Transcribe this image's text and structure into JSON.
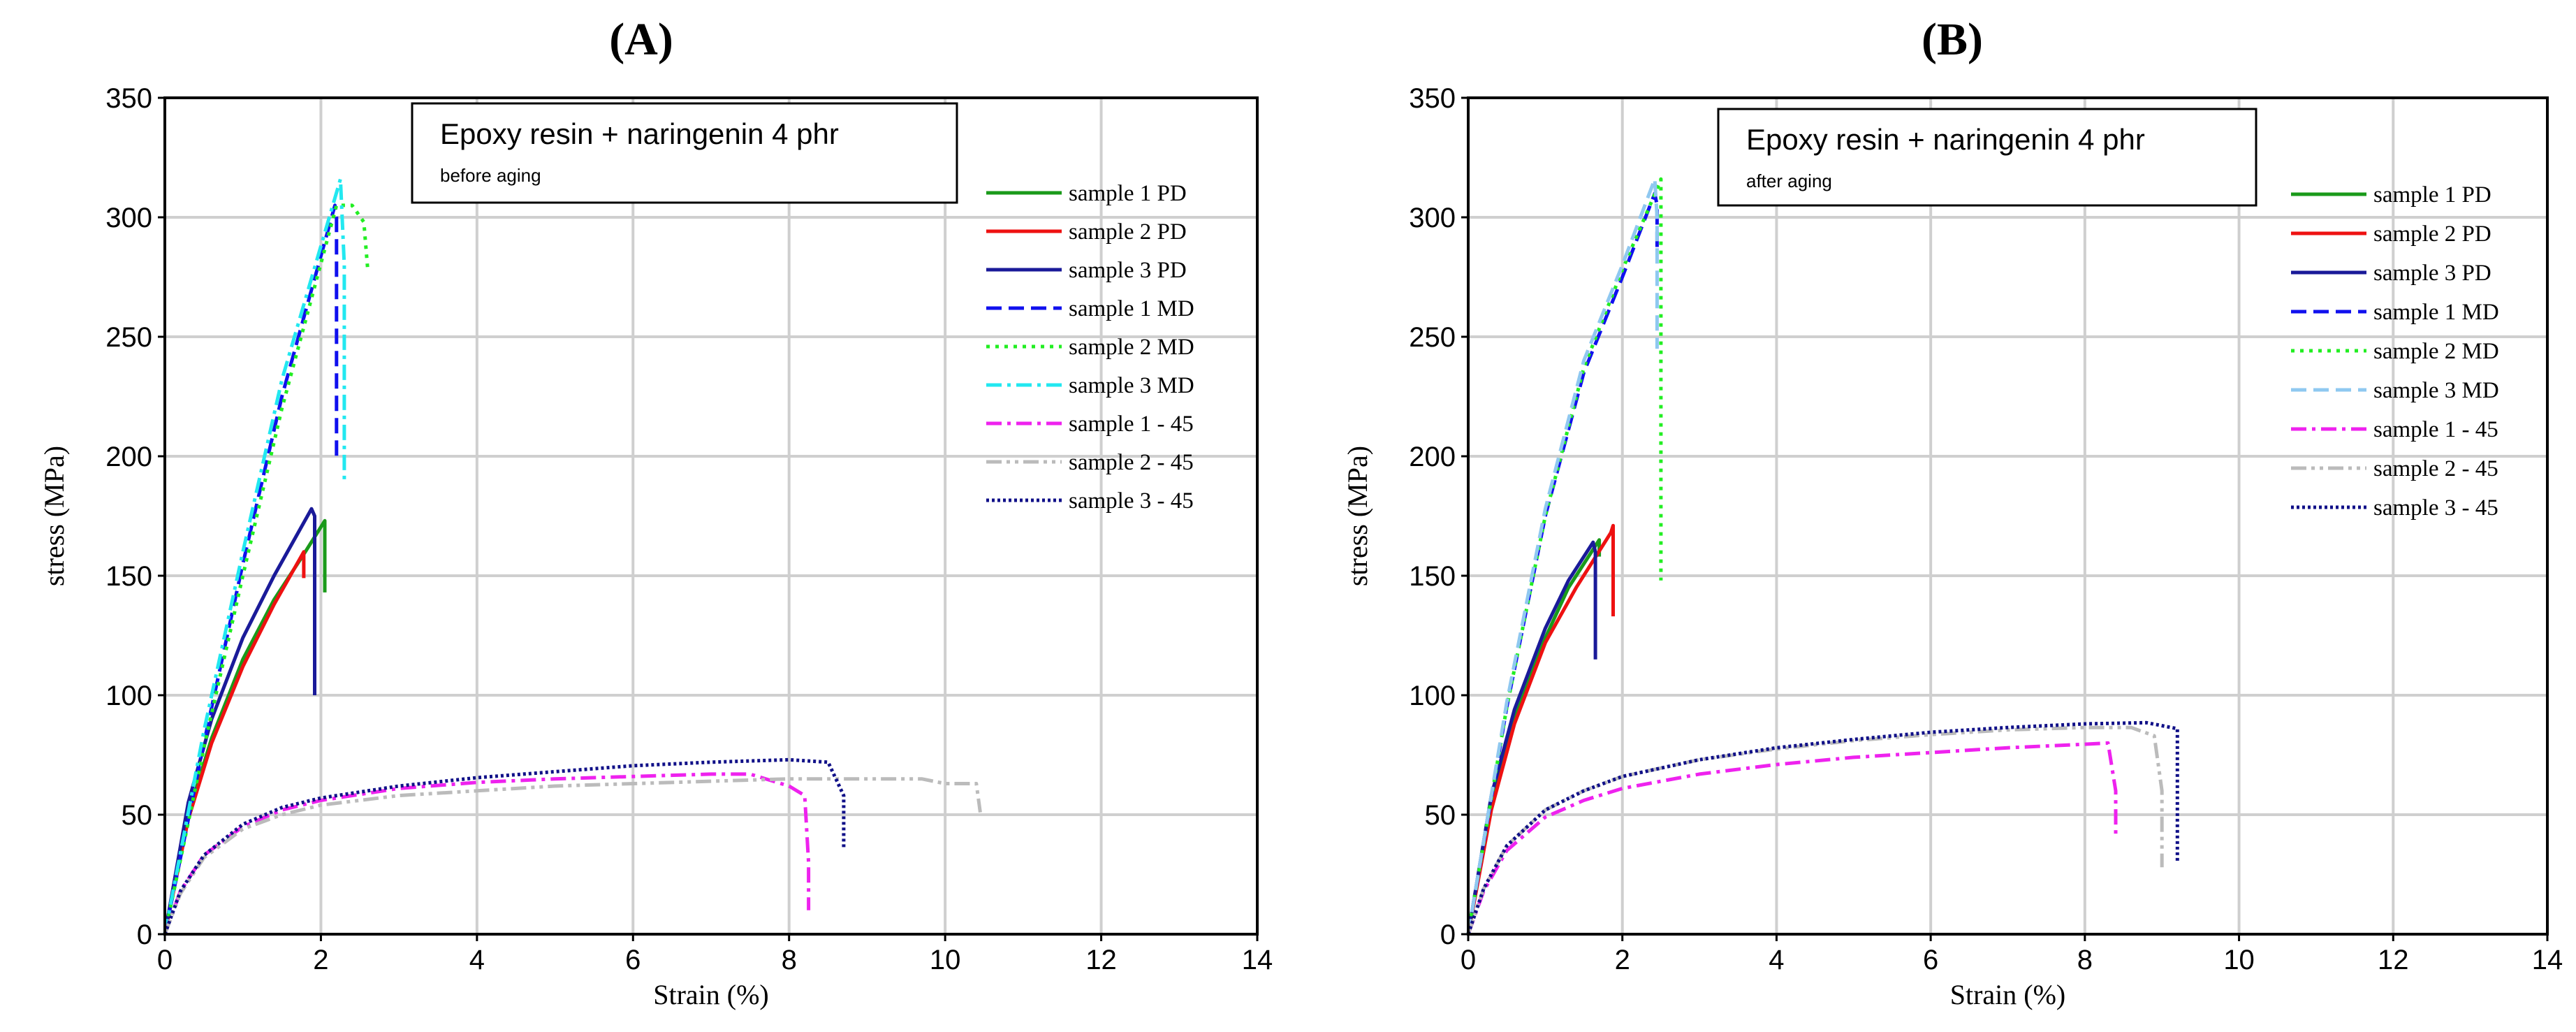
{
  "chart_data": [
    {
      "type": "line",
      "panel_label": "(A)",
      "title": "Epoxy resin + naringenin 4 phr",
      "subtitle": "before aging",
      "xlabel": "Strain (%)",
      "ylabel": "stress (MPa)",
      "xlim": [
        0,
        14
      ],
      "ylim": [
        0,
        350
      ],
      "xticks": [
        0,
        2,
        4,
        6,
        8,
        10,
        12,
        14
      ],
      "yticks": [
        0,
        50,
        100,
        150,
        200,
        250,
        300,
        350
      ],
      "grid": true,
      "legend_position": "right",
      "series": [
        {
          "name": "sample 1 PD",
          "color": "#1a9a1a",
          "dash": "solid",
          "x": [
            0,
            0.3,
            0.6,
            1.0,
            1.4,
            1.8,
            2.05,
            2.05
          ],
          "y": [
            0,
            50,
            82,
            115,
            140,
            160,
            173,
            143
          ]
        },
        {
          "name": "sample 2 PD",
          "color": "#ee1111",
          "dash": "solid",
          "x": [
            0,
            0.3,
            0.6,
            1.0,
            1.4,
            1.78,
            1.78
          ],
          "y": [
            0,
            48,
            80,
            112,
            138,
            160,
            149
          ]
        },
        {
          "name": "sample 3 PD",
          "color": "#1a1a99",
          "dash": "solid",
          "x": [
            0,
            0.3,
            0.6,
            1.0,
            1.4,
            1.88,
            1.92,
            1.92
          ],
          "y": [
            0,
            55,
            90,
            124,
            150,
            178,
            175,
            100
          ]
        },
        {
          "name": "sample 1 MD",
          "color": "#1010ee",
          "dash": "dashed",
          "x": [
            0,
            0.5,
            1.0,
            1.5,
            2.18,
            2.2,
            2.2
          ],
          "y": [
            0,
            80,
            155,
            225,
            305,
            300,
            200
          ]
        },
        {
          "name": "sample 2 MD",
          "color": "#22ee22",
          "dash": "dotted",
          "x": [
            0,
            0.5,
            1.0,
            1.5,
            2.2,
            2.4,
            2.55,
            2.6
          ],
          "y": [
            0,
            78,
            150,
            220,
            305,
            305,
            298,
            278
          ]
        },
        {
          "name": "sample 3 MD",
          "color": "#22e8f0",
          "dash": "dashdot",
          "x": [
            0,
            0.5,
            1.0,
            1.5,
            2.25,
            2.3,
            2.3
          ],
          "y": [
            0,
            85,
            160,
            232,
            316,
            280,
            190
          ]
        },
        {
          "name": "sample 1 - 45",
          "color": "#ee22ee",
          "dash": "dashdot",
          "x": [
            0,
            0.2,
            0.5,
            1,
            1.5,
            2,
            3,
            4,
            5,
            6,
            7,
            7.5,
            8.0,
            8.2,
            8.25,
            8.25
          ],
          "y": [
            0,
            18,
            33,
            45,
            52,
            56,
            61,
            63.5,
            65,
            66,
            67,
            67,
            62,
            58,
            30,
            10
          ]
        },
        {
          "name": "sample 2 - 45",
          "color": "#bbbbbb",
          "dash": "dashdotdot",
          "x": [
            0,
            0.2,
            0.5,
            1,
            1.5,
            2,
            3,
            4,
            5,
            6,
            7,
            8,
            9,
            9.7,
            10.0,
            10.4,
            10.45
          ],
          "y": [
            0,
            17,
            32,
            44,
            50,
            54,
            58,
            60,
            62,
            63,
            64,
            65,
            65,
            65,
            63,
            63,
            51
          ]
        },
        {
          "name": "sample 3 - 45",
          "color": "#101088",
          "dash": "densedot",
          "x": [
            0,
            0.2,
            0.5,
            1,
            1.5,
            2,
            3,
            4,
            5,
            6,
            7,
            8,
            8.5,
            8.7,
            8.7
          ],
          "y": [
            0,
            18,
            33,
            46,
            53,
            57,
            62,
            65.5,
            68,
            70.5,
            72,
            73,
            72,
            58,
            36
          ]
        }
      ]
    },
    {
      "type": "line",
      "panel_label": "(B)",
      "title": "Epoxy resin + naringenin 4 phr",
      "subtitle": "after aging",
      "xlabel": "Strain (%)",
      "ylabel": "stress (MPa)",
      "xlim": [
        0,
        14
      ],
      "ylim": [
        0,
        350
      ],
      "xticks": [
        0,
        2,
        4,
        6,
        8,
        10,
        12,
        14
      ],
      "yticks": [
        0,
        50,
        100,
        150,
        200,
        250,
        300,
        350
      ],
      "grid": true,
      "legend_position": "right",
      "series": [
        {
          "name": "sample 1 PD",
          "color": "#1a9a1a",
          "dash": "solid",
          "x": [
            0,
            0.3,
            0.6,
            1.0,
            1.3,
            1.7,
            1.7
          ],
          "y": [
            0,
            55,
            90,
            124,
            145,
            165,
            158
          ]
        },
        {
          "name": "sample 2 PD",
          "color": "#ee1111",
          "dash": "solid",
          "x": [
            0,
            0.3,
            0.6,
            1.0,
            1.4,
            1.85,
            1.88,
            1.88
          ],
          "y": [
            0,
            52,
            88,
            122,
            145,
            168,
            171,
            133
          ]
        },
        {
          "name": "sample 3 PD",
          "color": "#1a1a99",
          "dash": "solid",
          "x": [
            0,
            0.3,
            0.6,
            1.0,
            1.3,
            1.62,
            1.65,
            1.65
          ],
          "y": [
            0,
            58,
            94,
            128,
            148,
            164,
            160,
            115
          ]
        },
        {
          "name": "sample 1 MD",
          "color": "#1010ee",
          "dash": "dashed",
          "x": [
            0,
            0.5,
            1.0,
            1.5,
            2.0,
            2.42,
            2.45,
            2.45
          ],
          "y": [
            0,
            95,
            175,
            235,
            275,
            310,
            305,
            285
          ]
        },
        {
          "name": "sample 2 MD",
          "color": "#22ee22",
          "dash": "dotted",
          "x": [
            0,
            0.5,
            1.0,
            1.5,
            2.0,
            2.45,
            2.5,
            2.5
          ],
          "y": [
            0,
            95,
            175,
            237,
            278,
            312,
            316,
            148
          ]
        },
        {
          "name": "sample 3 MD",
          "color": "#8fc8f0",
          "dash": "dashed",
          "x": [
            0,
            0.5,
            1.0,
            1.5,
            2.0,
            2.42,
            2.45,
            2.45
          ],
          "y": [
            0,
            97,
            178,
            240,
            280,
            316,
            300,
            245
          ]
        },
        {
          "name": "sample 1 - 45",
          "color": "#ee22ee",
          "dash": "dashdot",
          "x": [
            0,
            0.2,
            0.5,
            1,
            1.5,
            2,
            3,
            4,
            5,
            6,
            7,
            8,
            8.3,
            8.4,
            8.4
          ],
          "y": [
            0,
            18,
            35,
            49,
            56,
            61,
            67,
            71,
            74,
            76,
            78,
            79.5,
            80,
            60,
            40
          ]
        },
        {
          "name": "sample 2 - 45",
          "color": "#bbbbbb",
          "dash": "dashdotdot",
          "x": [
            0,
            0.2,
            0.5,
            1,
            1.5,
            2,
            3,
            4,
            5,
            6,
            7,
            8,
            8.6,
            8.9,
            9.0,
            9.0
          ],
          "y": [
            0,
            19,
            37,
            52,
            60,
            66,
            73,
            77.5,
            81,
            83.5,
            85.5,
            86.5,
            86.5,
            83,
            60,
            28
          ]
        },
        {
          "name": "sample 3 - 45",
          "color": "#101088",
          "dash": "densedot",
          "x": [
            0,
            0.2,
            0.5,
            1,
            1.5,
            2,
            3,
            4,
            5,
            6,
            7,
            8,
            8.8,
            9.2,
            9.2
          ],
          "y": [
            0,
            19,
            37,
            52,
            60,
            66,
            73,
            78,
            81.5,
            84.5,
            86.5,
            88,
            88.5,
            86,
            30
          ]
        }
      ]
    }
  ]
}
